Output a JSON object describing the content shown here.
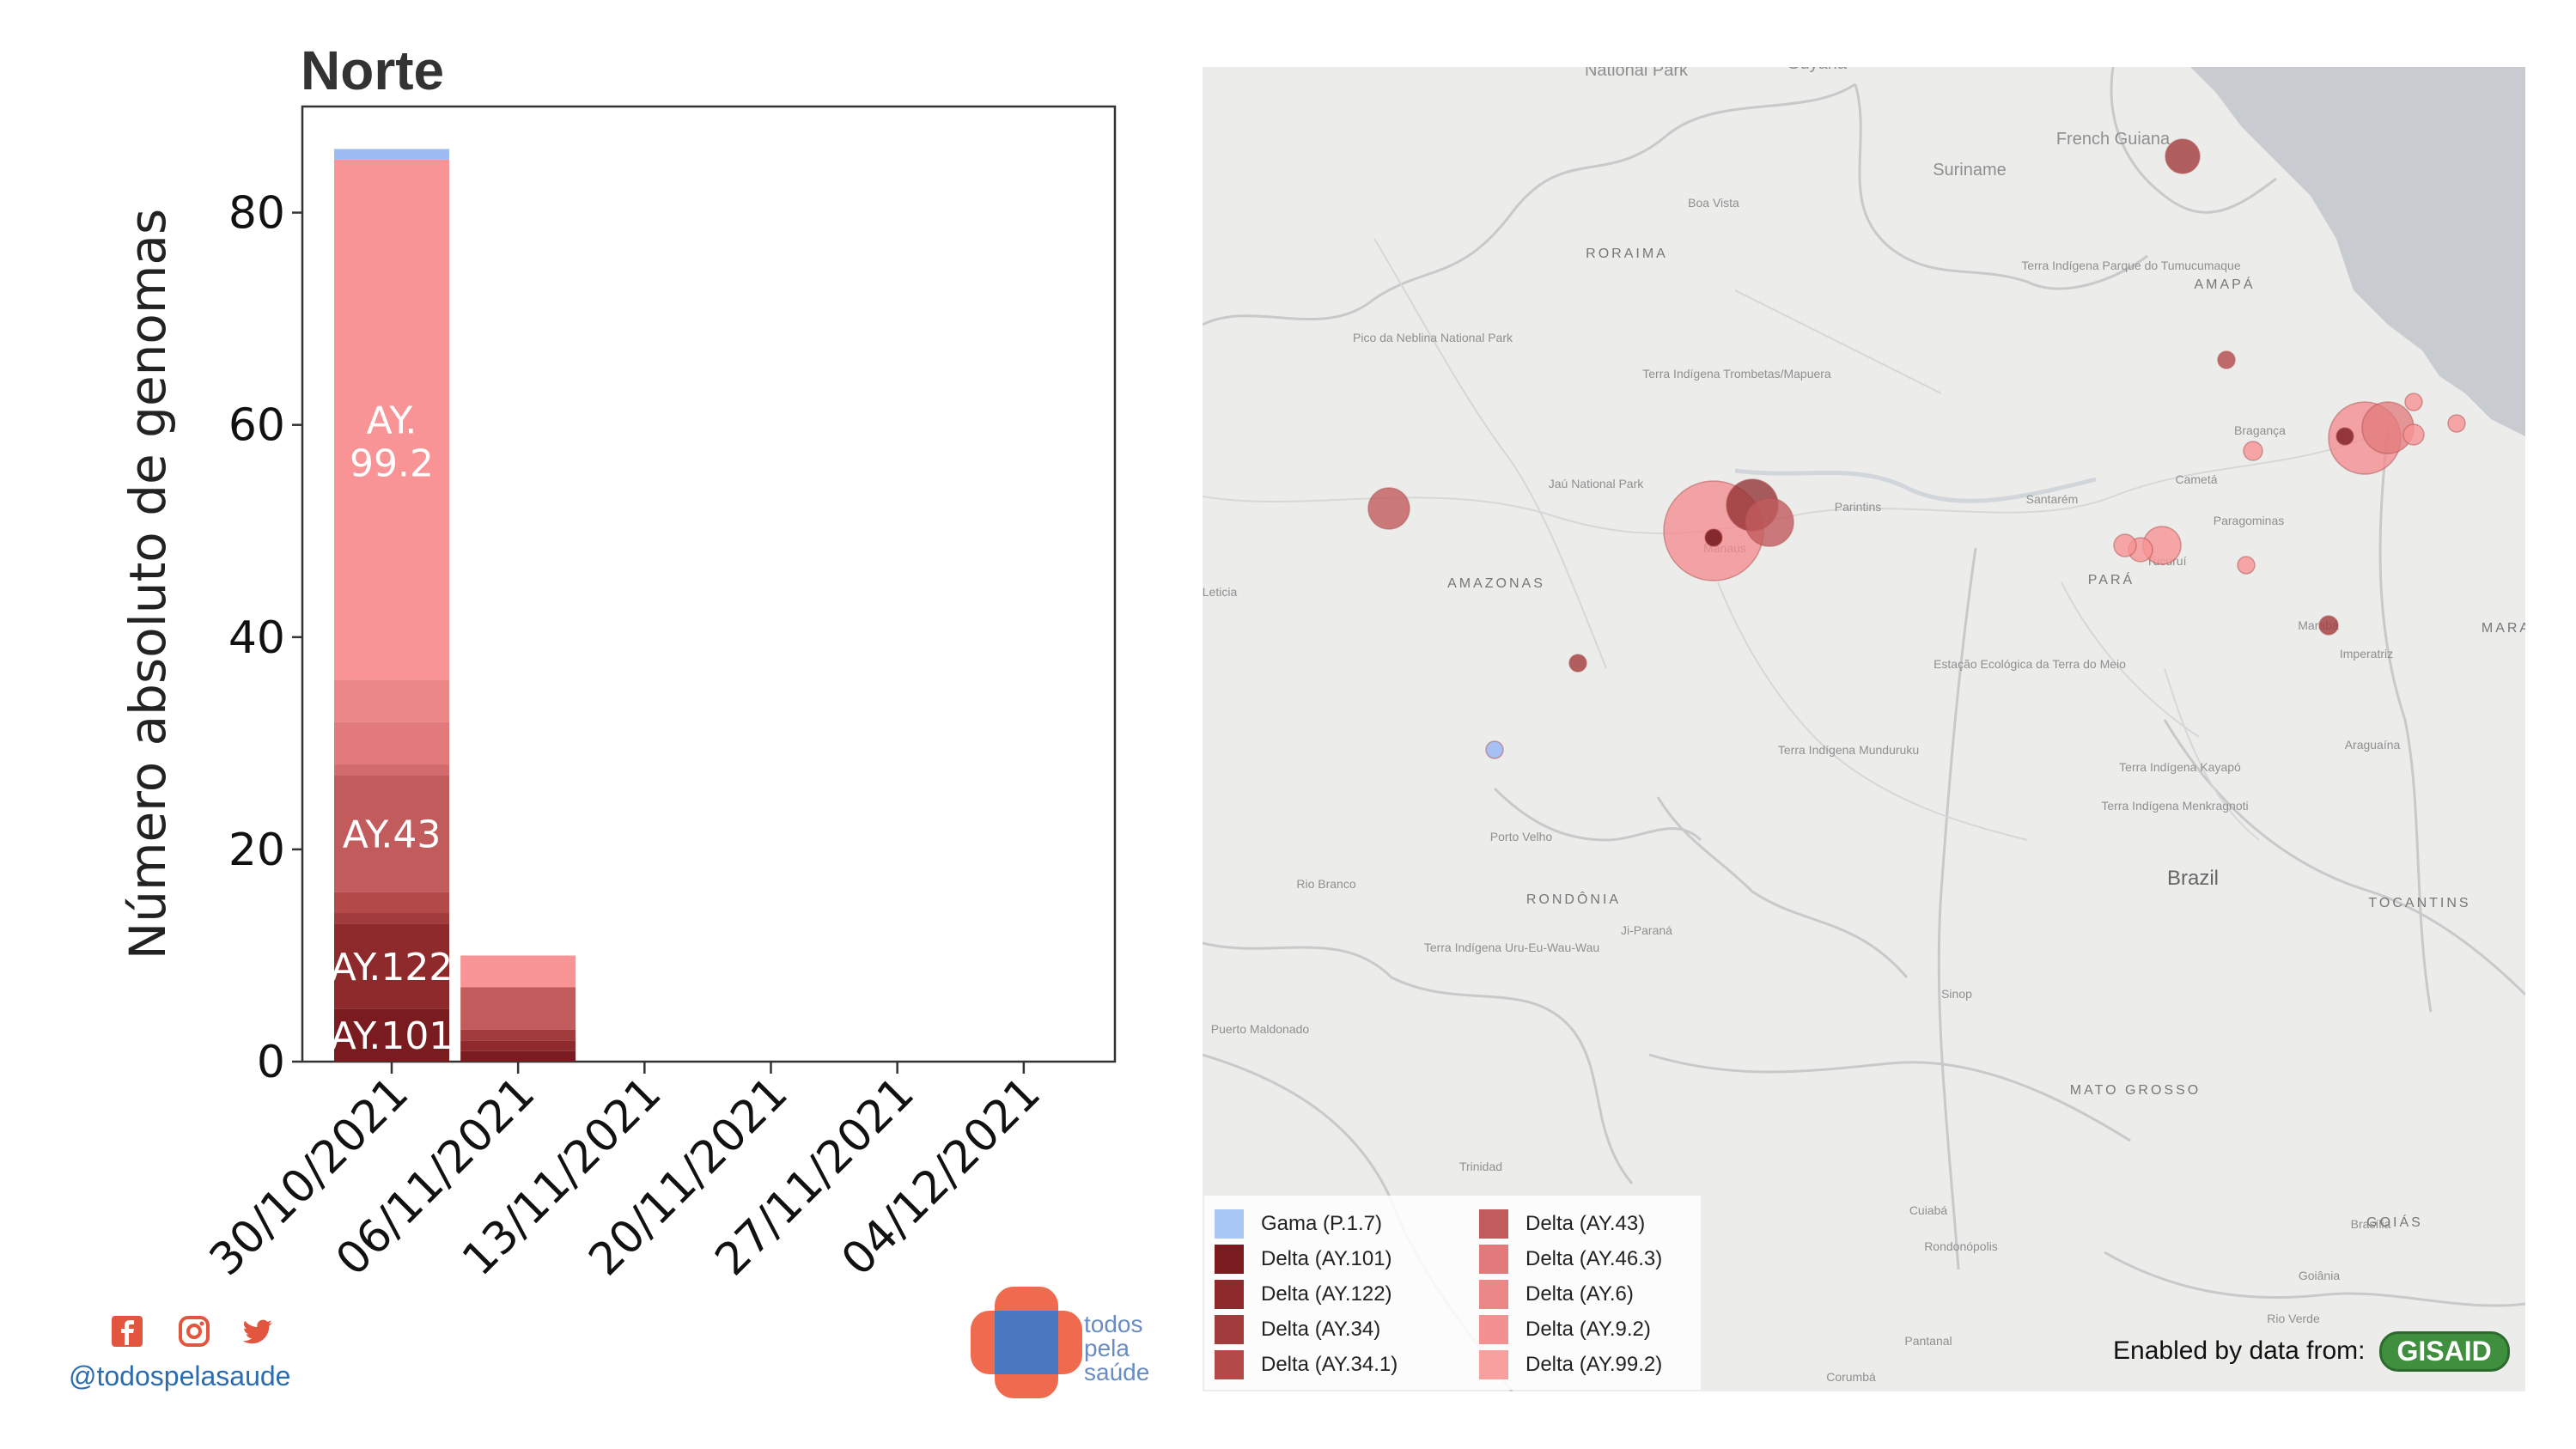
{
  "chart_data": {
    "type": "bar",
    "stacked": true,
    "title": "Norte",
    "ylabel": "Número absoluto de genomas",
    "xlabel": "",
    "ylim": [
      0,
      90
    ],
    "yticks": [
      "0",
      "20",
      "40",
      "60",
      "80"
    ],
    "categories": [
      "30/10/2021",
      "06/11/2021",
      "13/11/2021",
      "20/11/2021",
      "27/11/2021",
      "04/12/2021"
    ],
    "series": [
      {
        "name": "Delta (AY.101)",
        "color": "#7a1c1f",
        "values": [
          5,
          1,
          0,
          0,
          0,
          0
        ]
      },
      {
        "name": "Delta (AY.122)",
        "color": "#8e2a2c",
        "values": [
          8,
          1,
          0,
          0,
          0,
          0
        ]
      },
      {
        "name": "Delta (AY.34)",
        "color": "#a23b3c",
        "values": [
          1,
          1,
          0,
          0,
          0,
          0
        ]
      },
      {
        "name": "Delta (AY.34.1)",
        "color": "#b4494a",
        "values": [
          2,
          0,
          0,
          0,
          0,
          0
        ]
      },
      {
        "name": "Delta (AY.43)",
        "color": "#c25b5c",
        "values": [
          11,
          4,
          0,
          0,
          0,
          0
        ]
      },
      {
        "name": "Delta (AY.46.3)",
        "color": "#d36a6b",
        "values": [
          1,
          0,
          0,
          0,
          0,
          0
        ]
      },
      {
        "name": "Delta (AY.6)",
        "color": "#e27a7b",
        "values": [
          4,
          0,
          0,
          0,
          0,
          0
        ]
      },
      {
        "name": "Delta (AY.9.2)",
        "color": "#ec8788",
        "values": [
          4,
          0,
          0,
          0,
          0,
          0
        ]
      },
      {
        "name": "Delta (AY.99.2)",
        "color": "#f89495",
        "values": [
          49,
          3,
          0,
          0,
          0,
          0
        ]
      },
      {
        "name": "Gama (P.1.7)",
        "color": "#9dbcf4",
        "values": [
          1,
          0,
          0,
          0,
          0,
          0
        ]
      }
    ],
    "segment_labels": [
      {
        "text": "AY.101",
        "bar": 0,
        "series": 0
      },
      {
        "text": "AY.122",
        "bar": 0,
        "series": 1
      },
      {
        "text": "AY.43",
        "bar": 0,
        "series": 4
      },
      {
        "text": "AY.",
        "bar": 0,
        "series": 8,
        "line": 0
      },
      {
        "text": "99.2",
        "bar": 0,
        "series": 8,
        "line": 1
      }
    ]
  },
  "map": {
    "country_label": "Brazil",
    "places_large": [
      "RORAIMA",
      "AMAPÁ",
      "AMAZONAS",
      "PARÁ",
      "RONDÔNIA",
      "TOCANTINS",
      "MATO GROSSO",
      "GOIÁS",
      "MARA"
    ],
    "places_small": [
      "National Park",
      "Guyana",
      "Suriname",
      "French Guiana",
      "Boa Vista",
      "Santarém",
      "Parintins",
      "Manaus",
      "Cametá",
      "Bragança",
      "Paragominas",
      "Tucuruí",
      "Marabá",
      "Imperatriz",
      "Araguaína",
      "Porto Velho",
      "Rio Branco",
      "Ji-Paraná",
      "Sinop",
      "Cuiabá",
      "Rondonópolis",
      "Goiânia",
      "Brasília",
      "Rio Verde",
      "Trinidad",
      "Puerto Maldonado",
      "Pantanal",
      "Corumbá",
      "Jaú National Park",
      "Pico da Neblina National Park",
      "Leticia",
      "Terra Indígena Kayapó",
      "Terra Indígena Menkragnoti",
      "Terra Indígena Munduruku",
      "Estação Ecológica da Terra do Meio",
      "Terra Indígena Uru-Eu-Wau-Wau",
      "Terra Indígena Trombetas/Mapuera",
      "Terra Indígena Parque do Tumucumaque"
    ],
    "legend": [
      {
        "label": "Gama (P.1.7)",
        "color": "#a9c8f5"
      },
      {
        "label": "Delta (AY.101)",
        "color": "#7a1c1f"
      },
      {
        "label": "Delta (AY.122)",
        "color": "#8e2a2c"
      },
      {
        "label": "Delta (AY.34)",
        "color": "#a23b3c"
      },
      {
        "label": "Delta (AY.34.1)",
        "color": "#b4494a"
      },
      {
        "label": "Delta (AY.43)",
        "color": "#c25b5c"
      },
      {
        "label": "Delta (AY.46.3)",
        "color": "#e27a7b"
      },
      {
        "label": "Delta (AY.6)",
        "color": "#ec8788"
      },
      {
        "label": "Delta (AY.9.2)",
        "color": "#f39192"
      },
      {
        "label": "Delta (AY.99.2)",
        "color": "#f8a0a0"
      }
    ],
    "attribution_text": "Enabled by data from:",
    "attribution_logo": "GISAID"
  },
  "footer": {
    "handle": "@todospelasaude",
    "social_icons": [
      "facebook-icon",
      "instagram-icon",
      "twitter-icon"
    ],
    "brand_words": [
      "todos",
      "pela",
      "saúde"
    ],
    "brand_colors": {
      "orange": "#f06a50",
      "blue": "#4a78c0"
    }
  }
}
